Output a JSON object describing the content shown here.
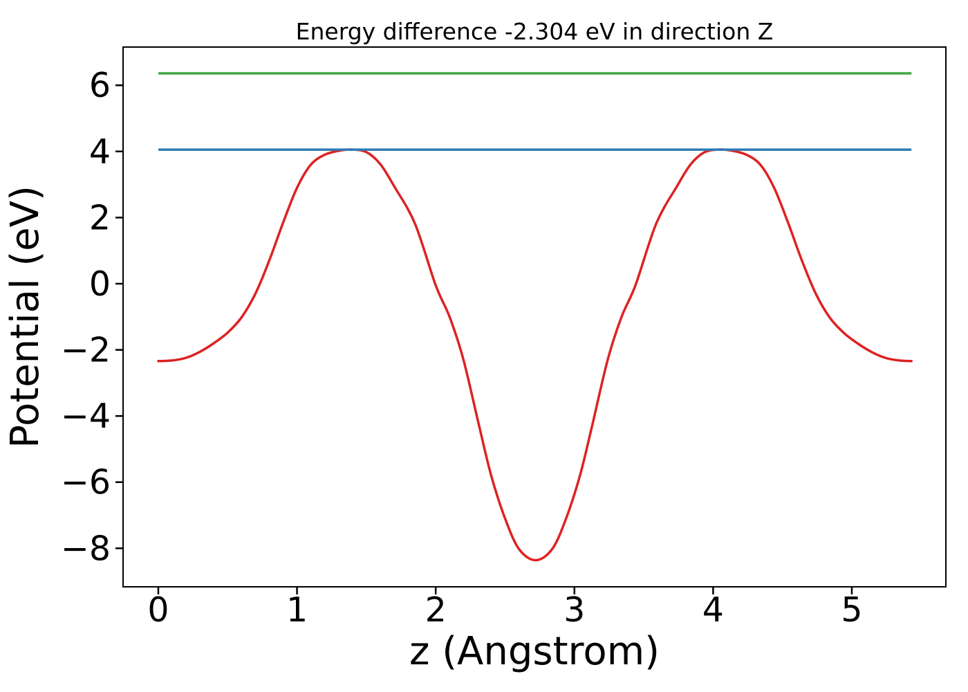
{
  "figure": {
    "title": "Energy difference -2.304 eV in direction Z",
    "xlabel": "z (Angstrom)",
    "ylabel": "Potential (eV)",
    "background_color": "#ffffff",
    "spine_color": "#000000"
  },
  "chart_data": {
    "type": "line",
    "title": "Energy difference -2.304 eV in direction Z",
    "xlabel": "z (Angstrom)",
    "ylabel": "Potential (eV)",
    "xlim": [
      -0.254,
      5.678
    ],
    "ylim": [
      -9.165,
      7.156
    ],
    "x_ticks": [
      0,
      1,
      2,
      3,
      4,
      5
    ],
    "y_ticks": [
      6,
      4,
      2,
      0,
      -2,
      -4,
      -6,
      -8
    ],
    "grid": false,
    "legend_position": "none",
    "energy_difference_eV": -2.304,
    "energy_difference_direction": "Z",
    "series": [
      {
        "name": "potential-curve",
        "color": "#dd2222",
        "line_width": 3.5,
        "x": [
          0.0,
          0.1,
          0.2,
          0.3,
          0.4,
          0.5,
          0.6,
          0.7,
          0.8,
          0.9,
          1.0,
          1.1,
          1.2,
          1.3,
          1.39,
          1.5,
          1.6,
          1.7,
          1.85,
          2.0,
          2.1,
          2.2,
          2.31,
          2.4,
          2.5,
          2.6,
          2.72,
          2.84,
          2.94,
          3.04,
          3.13,
          3.24,
          3.34,
          3.44,
          3.59,
          3.74,
          3.84,
          3.94,
          4.05,
          4.14,
          4.24,
          4.34,
          4.44,
          4.54,
          4.64,
          4.74,
          4.84,
          4.94,
          5.04,
          5.14,
          5.24,
          5.34,
          5.43
        ],
        "y": [
          -2.34,
          -2.32,
          -2.24,
          -2.06,
          -1.8,
          -1.48,
          -1.02,
          -0.3,
          0.7,
          1.85,
          2.9,
          3.6,
          3.9,
          4.02,
          4.06,
          3.98,
          3.62,
          2.95,
          1.82,
          -0.05,
          -1.0,
          -2.3,
          -4.25,
          -5.8,
          -7.1,
          -8.02,
          -8.36,
          -8.02,
          -7.1,
          -5.8,
          -4.25,
          -2.3,
          -1.0,
          -0.05,
          1.82,
          2.95,
          3.62,
          3.98,
          4.06,
          4.02,
          3.9,
          3.6,
          2.9,
          1.85,
          0.7,
          -0.3,
          -1.02,
          -1.48,
          -1.8,
          -2.06,
          -2.24,
          -2.32,
          -2.34
        ]
      },
      {
        "name": "lower-reference-level-line",
        "color": "#2e7bb4",
        "line_width": 3.5,
        "hline_value": 4.055,
        "x_range": [
          0.0,
          5.43
        ]
      },
      {
        "name": "upper-reference-level-line",
        "color": "#44a544",
        "line_width": 3.5,
        "hline_value": 6.36,
        "x_range": [
          0.0,
          5.43
        ]
      }
    ]
  }
}
